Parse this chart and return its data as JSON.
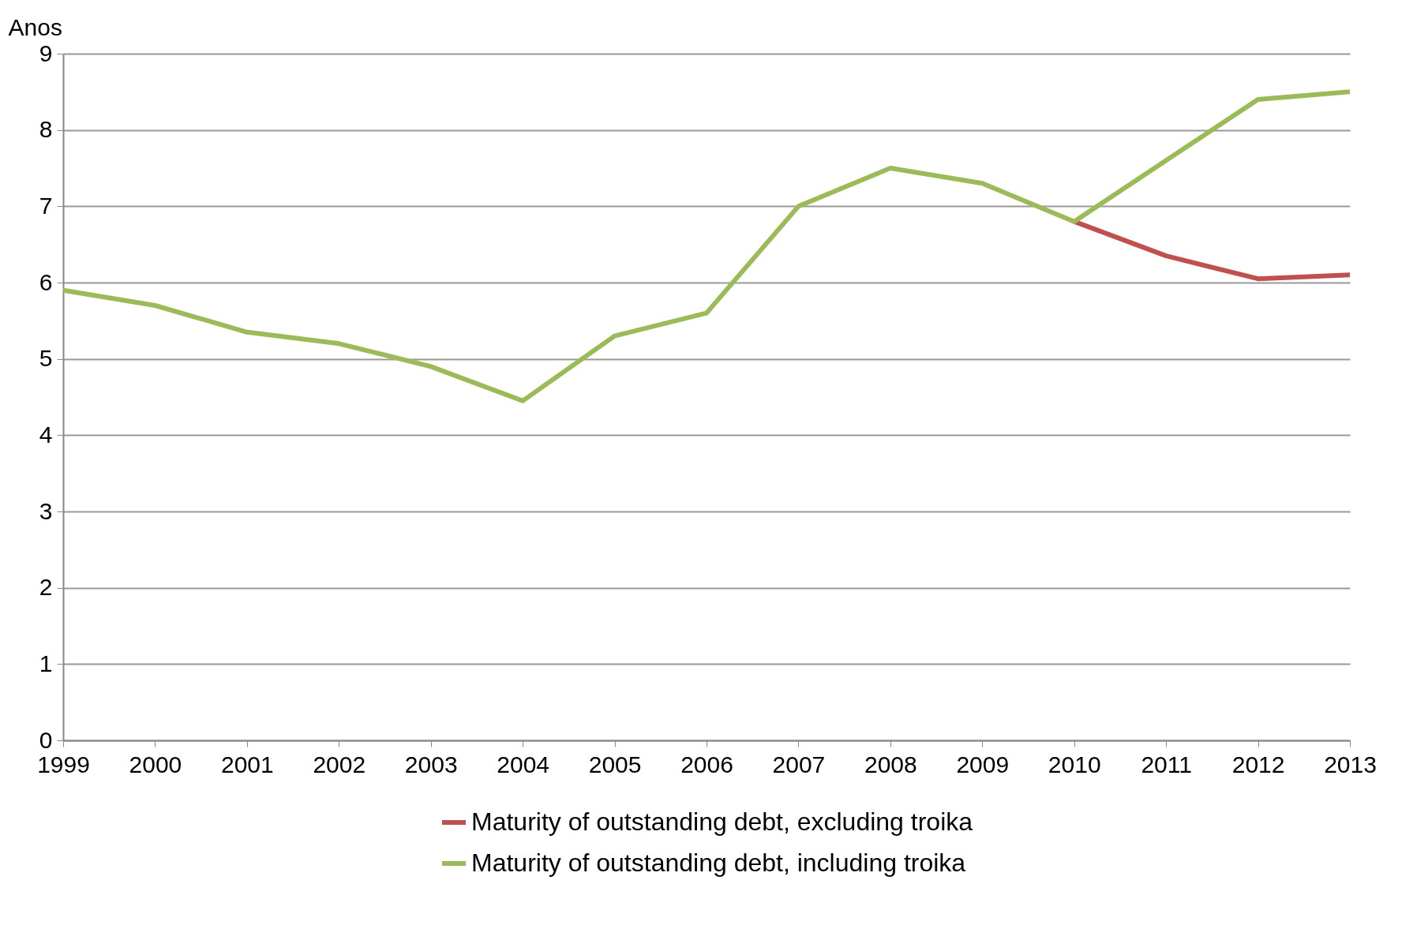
{
  "chart_data": {
    "type": "line",
    "ylabel": "Anos",
    "categories": [
      "1999",
      "2000",
      "2001",
      "2002",
      "2003",
      "2004",
      "2005",
      "2006",
      "2007",
      "2008",
      "2009",
      "2010",
      "2011",
      "2012",
      "2013"
    ],
    "series": [
      {
        "name": "Maturity of outstanding debt, excluding troika",
        "color": "#c0504d",
        "values": [
          null,
          null,
          null,
          null,
          null,
          null,
          null,
          null,
          null,
          null,
          null,
          6.8,
          6.35,
          6.05,
          6.1
        ]
      },
      {
        "name": "Maturity of outstanding debt, including troika",
        "color": "#9bbb59",
        "values": [
          5.9,
          5.7,
          5.35,
          5.2,
          4.9,
          4.45,
          5.3,
          5.6,
          7.0,
          7.5,
          7.3,
          6.8,
          7.6,
          8.4,
          8.5
        ]
      }
    ],
    "ylim": [
      0,
      9
    ],
    "yticks": [
      0,
      1,
      2,
      3,
      4,
      5,
      6,
      7,
      8,
      9
    ],
    "grid": "y",
    "legend": "bottom",
    "marker": "none",
    "line_style": "solid"
  }
}
